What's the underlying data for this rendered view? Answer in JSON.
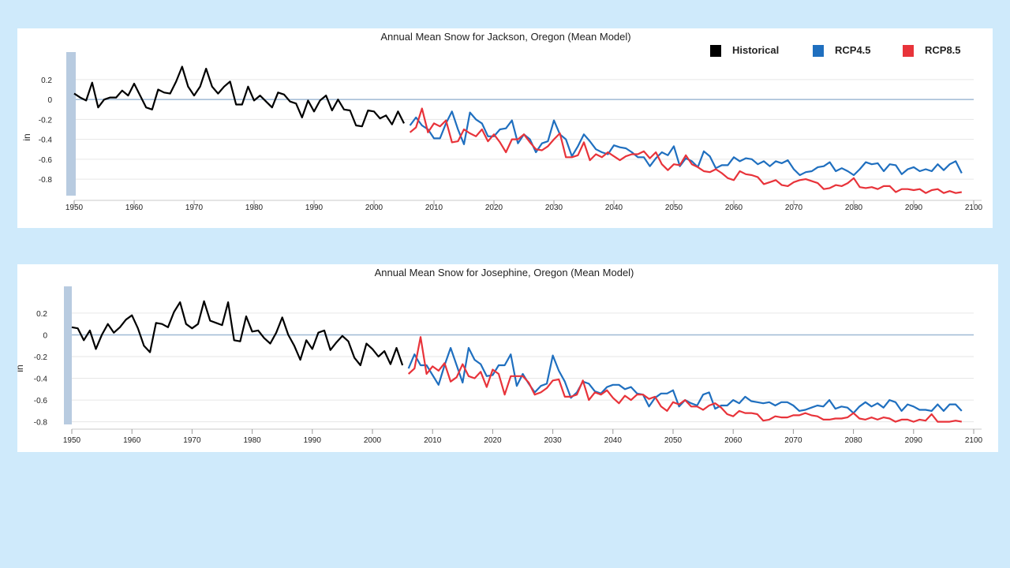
{
  "chart_data": [
    {
      "type": "line",
      "title": "Annual Mean Snow for Jackson, Oregon (Mean Model)",
      "ylabel": "in",
      "xlim": [
        1950,
        2100
      ],
      "ylim": [
        -0.95,
        0.35
      ],
      "xticks": [
        1950,
        1960,
        1970,
        1980,
        1990,
        2000,
        2010,
        2020,
        2030,
        2040,
        2050,
        2060,
        2070,
        2080,
        2090,
        2100
      ],
      "yticks": [
        0.2,
        0,
        -0.2,
        -0.4,
        -0.6,
        -0.8
      ],
      "grid": true,
      "legend": "top-right",
      "series": [
        {
          "name": "Historical",
          "color": "#000000",
          "start": 1950,
          "values": [
            0.06,
            0.02,
            -0.01,
            0.17,
            -0.08,
            0.0,
            0.02,
            0.02,
            0.09,
            0.04,
            0.16,
            0.04,
            -0.08,
            -0.1,
            0.1,
            0.07,
            0.06,
            0.18,
            0.33,
            0.13,
            0.04,
            0.13,
            0.31,
            0.13,
            0.06,
            0.13,
            0.18,
            -0.05,
            -0.05,
            0.13,
            -0.01,
            0.04,
            -0.02,
            -0.08,
            0.07,
            0.05,
            -0.02,
            -0.04,
            -0.18,
            -0.01,
            -0.12,
            -0.01,
            0.04,
            -0.11,
            0.0,
            -0.1,
            -0.11,
            -0.26,
            -0.27,
            -0.11,
            -0.12,
            -0.19,
            -0.16,
            -0.25,
            -0.12,
            -0.24
          ]
        },
        {
          "name": "RCP4.5",
          "color": "#1f6fbf",
          "start": 2006,
          "values": [
            -0.26,
            -0.18,
            -0.26,
            -0.3,
            -0.39,
            -0.39,
            -0.24,
            -0.12,
            -0.3,
            -0.45,
            -0.13,
            -0.2,
            -0.24,
            -0.37,
            -0.37,
            -0.3,
            -0.29,
            -0.21,
            -0.44,
            -0.35,
            -0.4,
            -0.53,
            -0.44,
            -0.42,
            -0.21,
            -0.35,
            -0.4,
            -0.57,
            -0.47,
            -0.35,
            -0.42,
            -0.5,
            -0.53,
            -0.55,
            -0.46,
            -0.48,
            -0.49,
            -0.53,
            -0.58,
            -0.58,
            -0.67,
            -0.59,
            -0.53,
            -0.56,
            -0.47,
            -0.67,
            -0.59,
            -0.62,
            -0.68,
            -0.52,
            -0.57,
            -0.69,
            -0.66,
            -0.66,
            -0.58,
            -0.62,
            -0.59,
            -0.6,
            -0.65,
            -0.62,
            -0.67,
            -0.62,
            -0.64,
            -0.61,
            -0.7,
            -0.76,
            -0.73,
            -0.72,
            -0.68,
            -0.67,
            -0.63,
            -0.72,
            -0.69,
            -0.72,
            -0.76,
            -0.7,
            -0.63,
            -0.65,
            -0.64,
            -0.72,
            -0.65,
            -0.66,
            -0.75,
            -0.7,
            -0.68,
            -0.72,
            -0.7,
            -0.72,
            -0.65,
            -0.71,
            -0.65,
            -0.62,
            -0.74
          ]
        },
        {
          "name": "RCP8.5",
          "color": "#e8333a",
          "start": 2006,
          "values": [
            -0.33,
            -0.28,
            -0.09,
            -0.33,
            -0.24,
            -0.27,
            -0.21,
            -0.43,
            -0.42,
            -0.3,
            -0.34,
            -0.37,
            -0.3,
            -0.42,
            -0.35,
            -0.43,
            -0.53,
            -0.4,
            -0.4,
            -0.35,
            -0.43,
            -0.5,
            -0.51,
            -0.47,
            -0.4,
            -0.34,
            -0.58,
            -0.58,
            -0.56,
            -0.43,
            -0.61,
            -0.55,
            -0.58,
            -0.53,
            -0.57,
            -0.61,
            -0.57,
            -0.55,
            -0.55,
            -0.52,
            -0.59,
            -0.53,
            -0.65,
            -0.71,
            -0.65,
            -0.66,
            -0.56,
            -0.65,
            -0.68,
            -0.72,
            -0.73,
            -0.7,
            -0.74,
            -0.79,
            -0.81,
            -0.72,
            -0.75,
            -0.76,
            -0.78,
            -0.85,
            -0.83,
            -0.81,
            -0.86,
            -0.87,
            -0.83,
            -0.81,
            -0.8,
            -0.82,
            -0.84,
            -0.9,
            -0.89,
            -0.86,
            -0.87,
            -0.84,
            -0.79,
            -0.88,
            -0.89,
            -0.88,
            -0.9,
            -0.87,
            -0.87,
            -0.93,
            -0.9,
            -0.9,
            -0.91,
            -0.9,
            -0.94,
            -0.91,
            -0.9,
            -0.94,
            -0.92,
            -0.94,
            -0.93
          ]
        }
      ]
    },
    {
      "type": "line",
      "title": "Annual Mean Snow for Josephine, Oregon (Mean Model)",
      "ylabel": "in",
      "xlim": [
        1950,
        2100
      ],
      "ylim": [
        -0.81,
        0.33
      ],
      "xticks": [
        1950,
        1960,
        1970,
        1980,
        1990,
        2000,
        2010,
        2020,
        2030,
        2040,
        2050,
        2060,
        2070,
        2080,
        2090,
        2100
      ],
      "yticks": [
        0.2,
        0,
        -0.2,
        -0.4,
        -0.6,
        -0.8
      ],
      "grid": true,
      "series": [
        {
          "name": "Historical",
          "color": "#000000",
          "start": 1950,
          "values": [
            0.07,
            0.06,
            -0.05,
            0.04,
            -0.13,
            0.0,
            0.1,
            0.02,
            0.07,
            0.14,
            0.18,
            0.06,
            -0.1,
            -0.16,
            0.11,
            0.1,
            0.07,
            0.21,
            0.3,
            0.1,
            0.06,
            0.1,
            0.31,
            0.13,
            0.11,
            0.09,
            0.3,
            -0.05,
            -0.06,
            0.17,
            0.03,
            0.04,
            -0.03,
            -0.08,
            0.02,
            0.16,
            0.0,
            -0.1,
            -0.23,
            -0.05,
            -0.13,
            0.02,
            0.04,
            -0.14,
            -0.07,
            -0.01,
            -0.06,
            -0.21,
            -0.28,
            -0.08,
            -0.13,
            -0.2,
            -0.15,
            -0.27,
            -0.12,
            -0.28
          ]
        },
        {
          "name": "RCP4.5",
          "color": "#1f6fbf",
          "start": 2006,
          "values": [
            -0.31,
            -0.18,
            -0.28,
            -0.28,
            -0.37,
            -0.46,
            -0.28,
            -0.12,
            -0.28,
            -0.44,
            -0.12,
            -0.23,
            -0.27,
            -0.38,
            -0.37,
            -0.28,
            -0.28,
            -0.18,
            -0.47,
            -0.36,
            -0.45,
            -0.53,
            -0.47,
            -0.45,
            -0.19,
            -0.33,
            -0.43,
            -0.58,
            -0.53,
            -0.43,
            -0.45,
            -0.52,
            -0.54,
            -0.48,
            -0.46,
            -0.46,
            -0.5,
            -0.48,
            -0.54,
            -0.55,
            -0.66,
            -0.58,
            -0.54,
            -0.54,
            -0.51,
            -0.66,
            -0.6,
            -0.63,
            -0.65,
            -0.55,
            -0.53,
            -0.68,
            -0.65,
            -0.65,
            -0.6,
            -0.63,
            -0.57,
            -0.61,
            -0.62,
            -0.63,
            -0.62,
            -0.65,
            -0.62,
            -0.62,
            -0.65,
            -0.7,
            -0.69,
            -0.67,
            -0.65,
            -0.66,
            -0.6,
            -0.68,
            -0.66,
            -0.67,
            -0.72,
            -0.66,
            -0.62,
            -0.66,
            -0.63,
            -0.67,
            -0.6,
            -0.62,
            -0.7,
            -0.64,
            -0.66,
            -0.69,
            -0.69,
            -0.7,
            -0.64,
            -0.7,
            -0.64,
            -0.64,
            -0.7
          ]
        },
        {
          "name": "RCP8.5",
          "color": "#e8333a",
          "start": 2006,
          "values": [
            -0.36,
            -0.31,
            -0.02,
            -0.36,
            -0.29,
            -0.33,
            -0.26,
            -0.43,
            -0.39,
            -0.27,
            -0.38,
            -0.4,
            -0.34,
            -0.48,
            -0.32,
            -0.36,
            -0.55,
            -0.38,
            -0.38,
            -0.38,
            -0.44,
            -0.55,
            -0.53,
            -0.49,
            -0.42,
            -0.41,
            -0.57,
            -0.57,
            -0.55,
            -0.42,
            -0.6,
            -0.53,
            -0.55,
            -0.51,
            -0.58,
            -0.63,
            -0.56,
            -0.6,
            -0.55,
            -0.55,
            -0.59,
            -0.57,
            -0.66,
            -0.7,
            -0.62,
            -0.64,
            -0.6,
            -0.66,
            -0.66,
            -0.69,
            -0.65,
            -0.63,
            -0.67,
            -0.73,
            -0.75,
            -0.7,
            -0.72,
            -0.72,
            -0.73,
            -0.79,
            -0.78,
            -0.75,
            -0.76,
            -0.76,
            -0.74,
            -0.74,
            -0.72,
            -0.74,
            -0.75,
            -0.78,
            -0.78,
            -0.77,
            -0.77,
            -0.76,
            -0.72,
            -0.77,
            -0.78,
            -0.76,
            -0.78,
            -0.76,
            -0.77,
            -0.8,
            -0.78,
            -0.78,
            -0.8,
            -0.78,
            -0.79,
            -0.73,
            -0.8,
            -0.8,
            -0.8,
            -0.79,
            -0.8
          ]
        }
      ]
    }
  ]
}
